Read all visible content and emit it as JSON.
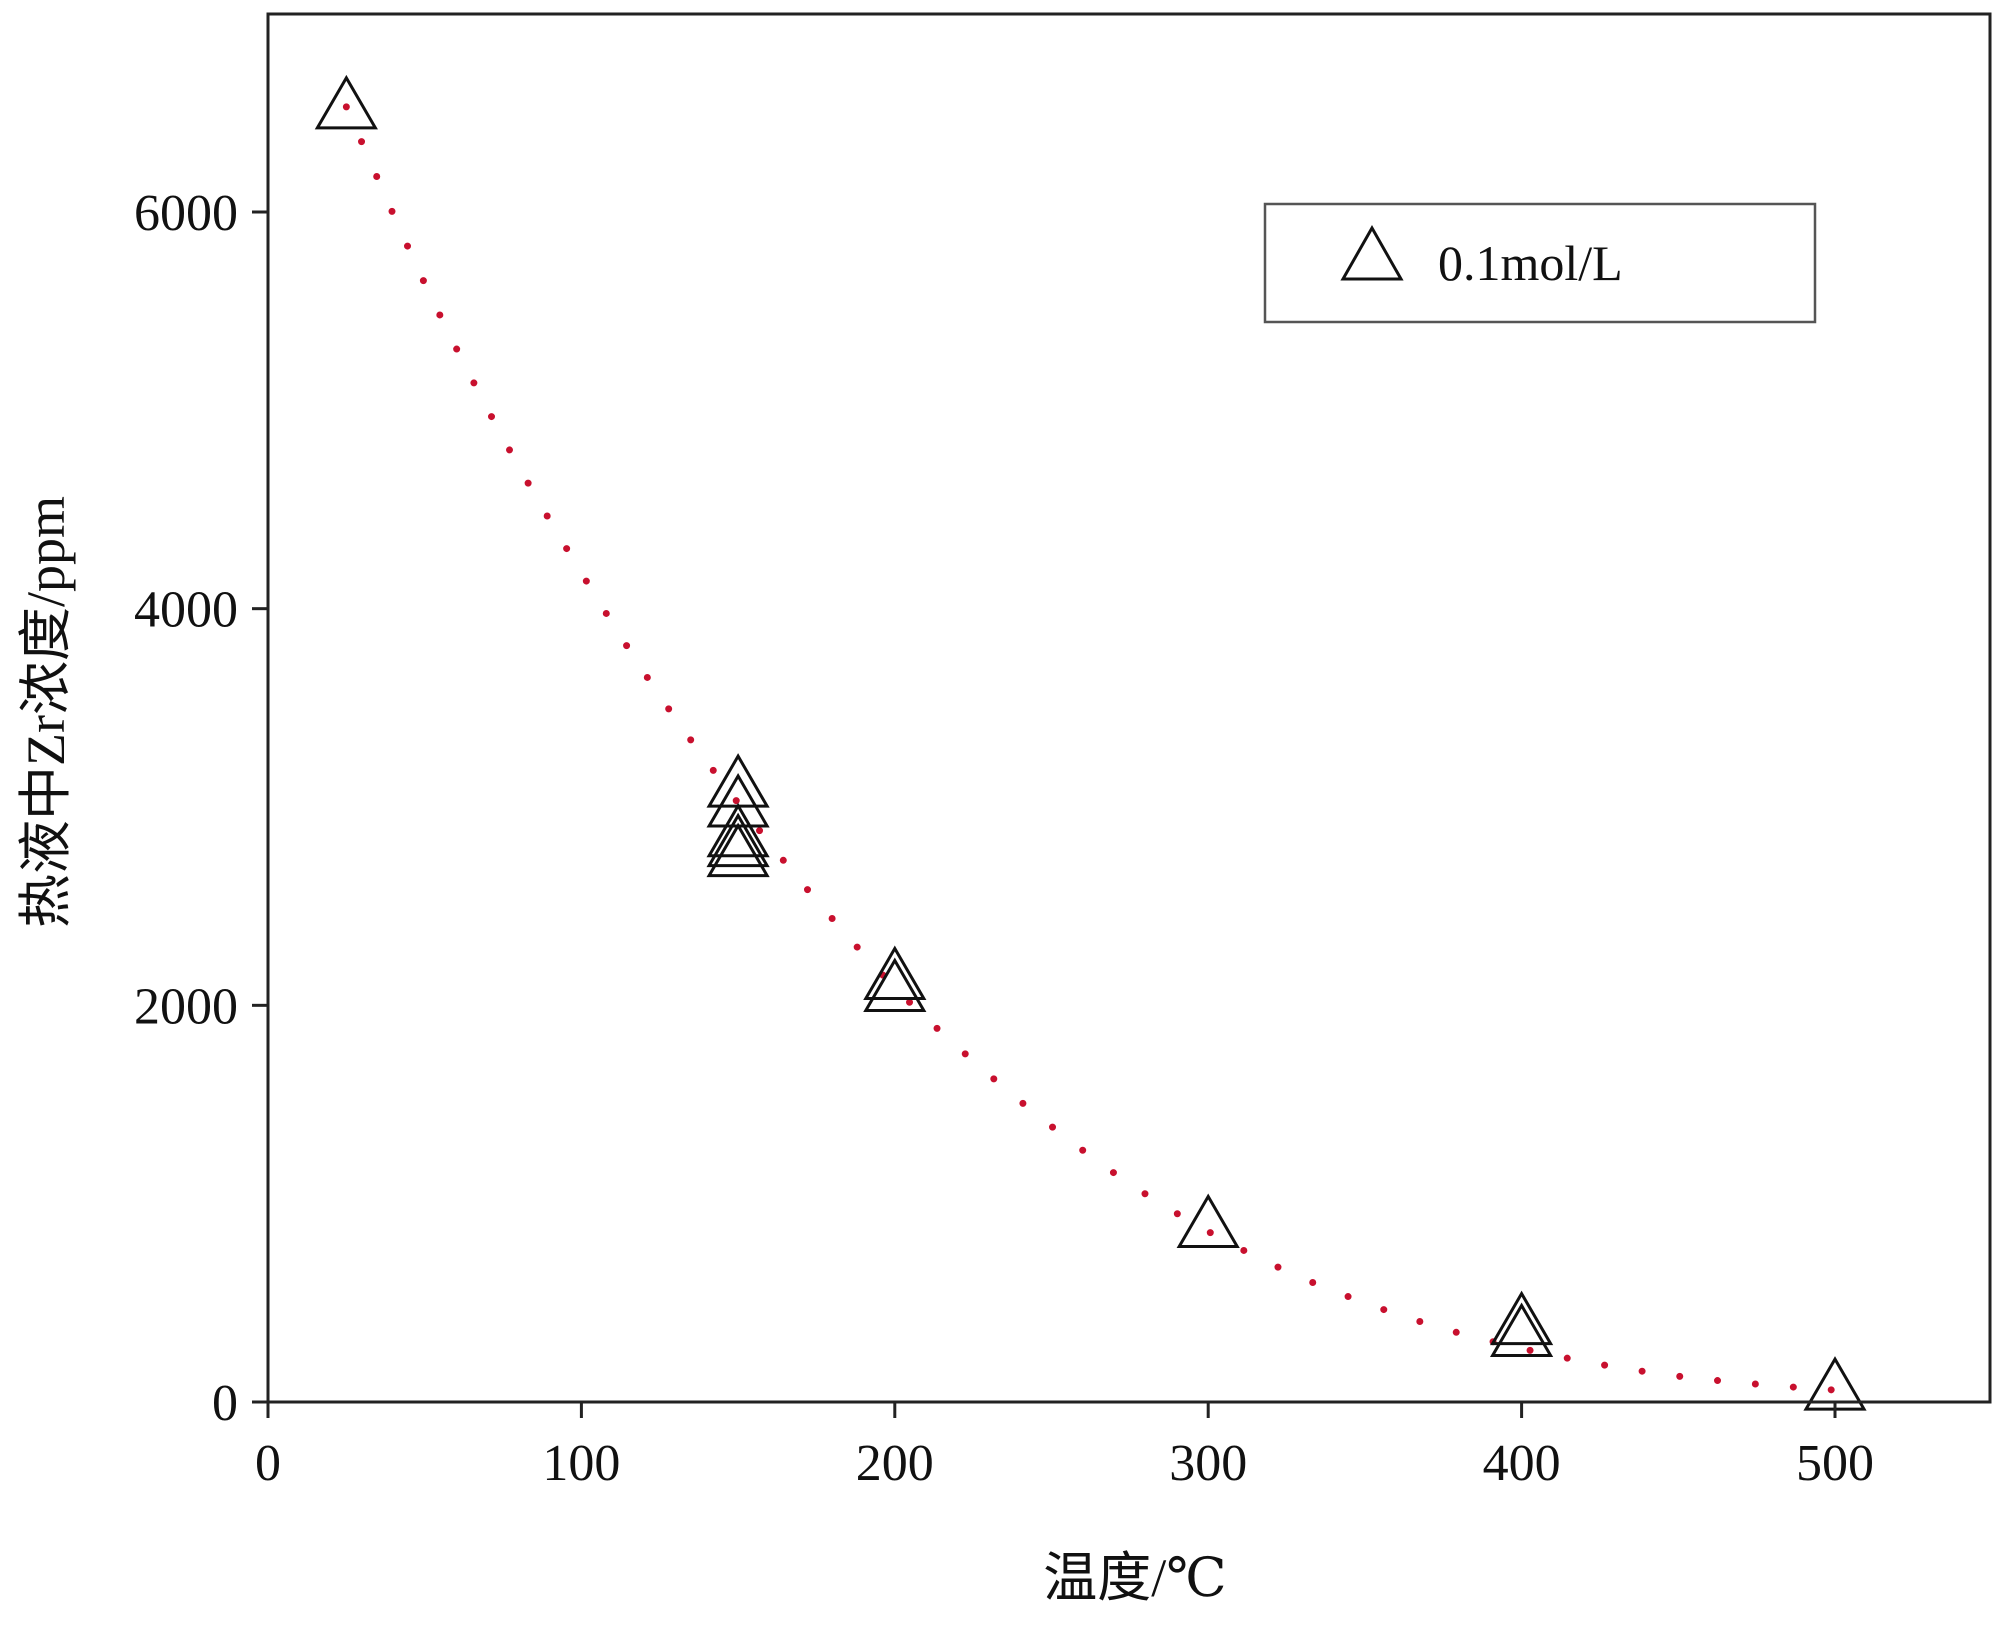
{
  "chart_data": {
    "type": "scatter",
    "title": "",
    "xlabel": "温度/℃",
    "ylabel": "热液中Zr浓度/ppm",
    "xlim": [
      0,
      550
    ],
    "ylim": [
      0,
      7000
    ],
    "x_ticks": [
      0,
      100,
      200,
      300,
      400,
      500
    ],
    "x_tick_labels": [
      "0",
      "100",
      "200",
      "300",
      "400",
      "500"
    ],
    "y_ticks": [
      0,
      2000,
      4000,
      6000
    ],
    "y_tick_labels": [
      "0",
      "2000",
      "4000",
      "6000"
    ],
    "grid": false,
    "legend": {
      "position": "top-right",
      "entries": [
        {
          "label": "0.1mol/L",
          "marker": "open-triangle"
        }
      ]
    },
    "series": [
      {
        "name": "0.1mol/L",
        "marker": "open-triangle",
        "color": "#111111",
        "points": [
          {
            "x": 25,
            "y": 6520
          },
          {
            "x": 150,
            "y": 3100
          },
          {
            "x": 150,
            "y": 3000
          },
          {
            "x": 150,
            "y": 2850
          },
          {
            "x": 150,
            "y": 2800
          },
          {
            "x": 150,
            "y": 2750
          },
          {
            "x": 200,
            "y": 2130
          },
          {
            "x": 200,
            "y": 2070
          },
          {
            "x": 300,
            "y": 880
          },
          {
            "x": 400,
            "y": 390
          },
          {
            "x": 400,
            "y": 330
          },
          {
            "x": 500,
            "y": 60
          }
        ]
      }
    ],
    "fit_curve": {
      "style": "dotted",
      "color": "#c8102e",
      "points": [
        {
          "x": 25,
          "y": 6530
        },
        {
          "x": 50,
          "y": 5640
        },
        {
          "x": 75,
          "y": 4860
        },
        {
          "x": 100,
          "y": 4180
        },
        {
          "x": 125,
          "y": 3560
        },
        {
          "x": 150,
          "y": 3020
        },
        {
          "x": 175,
          "y": 2530
        },
        {
          "x": 200,
          "y": 2090
        },
        {
          "x": 225,
          "y": 1720
        },
        {
          "x": 250,
          "y": 1390
        },
        {
          "x": 275,
          "y": 1100
        },
        {
          "x": 300,
          "y": 860
        },
        {
          "x": 325,
          "y": 660
        },
        {
          "x": 350,
          "y": 500
        },
        {
          "x": 375,
          "y": 370
        },
        {
          "x": 400,
          "y": 270
        },
        {
          "x": 425,
          "y": 190
        },
        {
          "x": 450,
          "y": 130
        },
        {
          "x": 475,
          "y": 90
        },
        {
          "x": 500,
          "y": 60
        }
      ]
    }
  }
}
